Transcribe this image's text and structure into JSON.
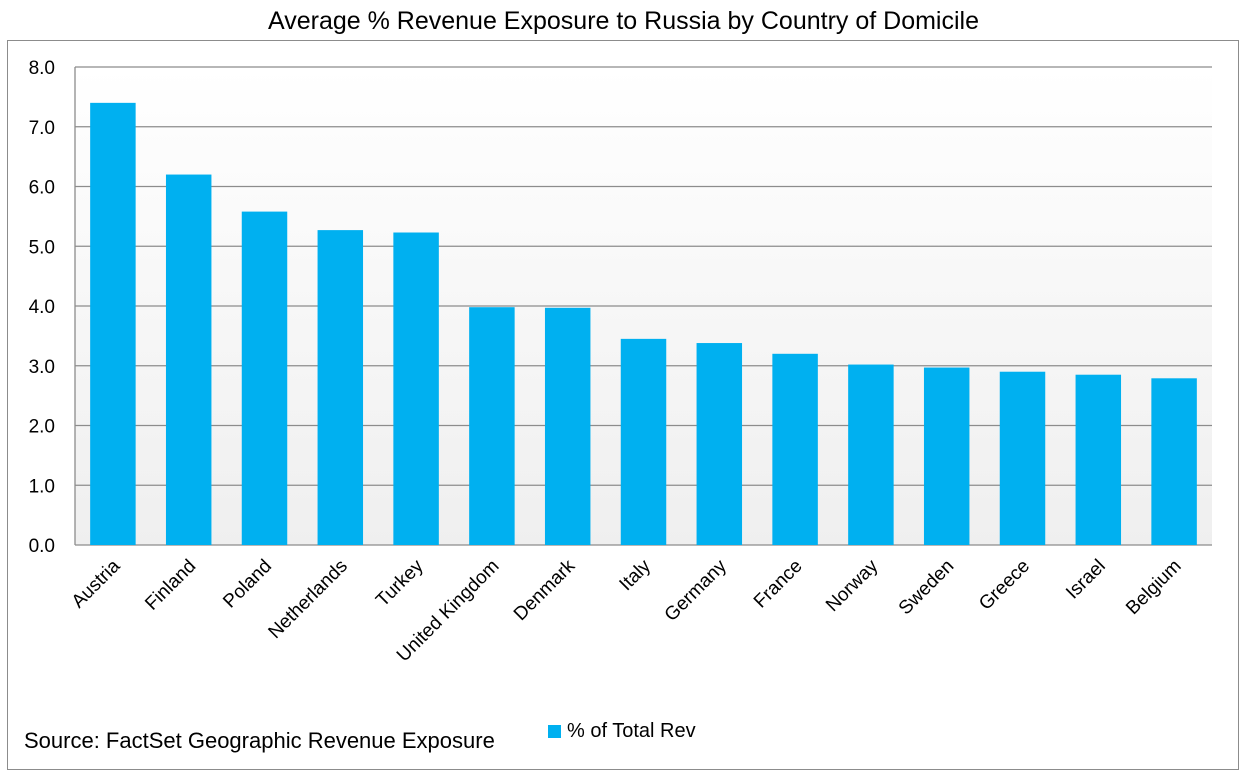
{
  "source_note": "Source: FactSet Geographic Revenue Exposure",
  "colors": {
    "bar": "#00B0F0",
    "grid": "#8c8c8c",
    "plot_bg_top": "#ffffff",
    "plot_bg_bottom": "#efefef"
  },
  "chart_data": {
    "type": "bar",
    "title": "Average % Revenue Exposure to Russia by Country of Domicile",
    "xlabel": "",
    "ylabel": "",
    "ylim": [
      0,
      8
    ],
    "yticks": [
      "0.0",
      "1.0",
      "2.0",
      "3.0",
      "4.0",
      "5.0",
      "6.0",
      "7.0",
      "8.0"
    ],
    "grid": true,
    "legend_position": "bottom",
    "categories": [
      "Austria",
      "Finland",
      "Poland",
      "Netherlands",
      "Turkey",
      "United Kingdom",
      "Denmark",
      "Italy",
      "Germany",
      "France",
      "Norway",
      "Sweden",
      "Greece",
      "Israel",
      "Belgium"
    ],
    "series": [
      {
        "name": "% of Total Rev",
        "values": [
          7.4,
          6.2,
          5.58,
          5.27,
          5.23,
          3.98,
          3.97,
          3.45,
          3.38,
          3.2,
          3.02,
          2.97,
          2.9,
          2.85,
          2.79
        ]
      }
    ]
  }
}
